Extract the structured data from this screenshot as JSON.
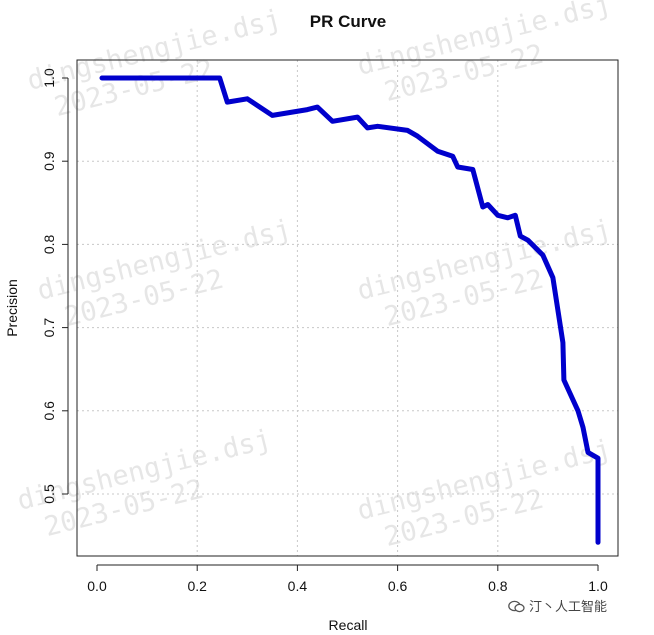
{
  "chart_data": {
    "type": "line",
    "title": "PR Curve",
    "xlabel": "Recall",
    "ylabel": "Precision",
    "xlim": [
      0,
      1
    ],
    "ylim": [
      0.45,
      1.0
    ],
    "x_ticks": [
      "0.0",
      "0.2",
      "0.4",
      "0.6",
      "0.8",
      "1.0"
    ],
    "y_ticks": [
      "0.5",
      "0.6",
      "0.7",
      "0.8",
      "0.9",
      "1.0"
    ],
    "grid": true,
    "line_color": "#0000cc",
    "series": [
      {
        "x": [
          0.01,
          0.245,
          0.26,
          0.3,
          0.35,
          0.42,
          0.44,
          0.47,
          0.52,
          0.54,
          0.56,
          0.62,
          0.64,
          0.68,
          0.71,
          0.72,
          0.75,
          0.77,
          0.78,
          0.8,
          0.82,
          0.835,
          0.845,
          0.86,
          0.89,
          0.91,
          0.93,
          0.932,
          0.96,
          0.97,
          0.98,
          1.0,
          1.0
        ],
        "y": [
          1.0,
          1.0,
          0.971,
          0.975,
          0.955,
          0.962,
          0.965,
          0.948,
          0.953,
          0.94,
          0.942,
          0.937,
          0.93,
          0.912,
          0.906,
          0.893,
          0.89,
          0.845,
          0.848,
          0.835,
          0.832,
          0.835,
          0.81,
          0.805,
          0.787,
          0.76,
          0.682,
          0.637,
          0.6,
          0.58,
          0.55,
          0.543,
          0.442
        ]
      }
    ]
  },
  "watermark": {
    "lines": [
      "dingshengjie.dsj",
      "2023-05-22"
    ]
  },
  "credit": {
    "text": "汀丶人工智能",
    "icon": "wechat-icon"
  }
}
